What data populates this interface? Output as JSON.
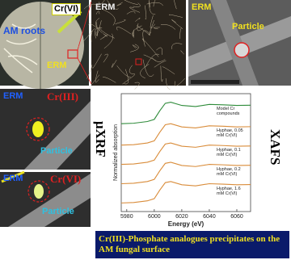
{
  "panels": {
    "roots": {
      "label_am": "AM roots",
      "label_cr": "Cr(VI)",
      "label_erm": "ERM"
    },
    "erm": {
      "label": "ERM"
    },
    "sem": {
      "label_erm": "ERM",
      "label_particle": "Particle"
    },
    "uxrf_cr3": {
      "label_erm": "ERM",
      "label_cr": "Cr(III)",
      "label_particle": "Particle"
    },
    "uxrf_cr6": {
      "label_erm": "ERM",
      "label_cr": "Cr(VI)",
      "label_particle": "Particle"
    }
  },
  "side_labels": {
    "left": "μXRF",
    "right": "XAFS"
  },
  "chart_data": {
    "type": "line",
    "x_label": "Energy (eV)",
    "y_label": "Normalized absorption",
    "x": [
      5976,
      5985,
      5995,
      6000,
      6004,
      6008,
      6012,
      6020,
      6030,
      6040,
      6050,
      6060,
      6070
    ],
    "xlim": [
      5976,
      6070
    ],
    "xticks": [
      5980,
      6000,
      6020,
      6040,
      6060
    ],
    "ylim": [
      0.5,
      6
    ],
    "series": [
      {
        "name": "Model Cr compounds",
        "color": "#2e8b3a",
        "values": [
          4.6,
          4.62,
          4.7,
          4.8,
          5.2,
          5.55,
          5.6,
          5.45,
          5.4,
          5.5,
          5.48,
          5.45,
          5.46
        ]
      },
      {
        "name": "Hyphae, 0.05 mM Cr(VI)",
        "color": "#d98c3a",
        "values": [
          3.6,
          3.62,
          3.7,
          3.8,
          4.2,
          4.55,
          4.6,
          4.45,
          4.4,
          4.5,
          4.48,
          4.45,
          4.46
        ]
      },
      {
        "name": "Hyphae, 0.1 mM Cr(VI)",
        "color": "#d98c3a",
        "values": [
          2.7,
          2.72,
          2.8,
          2.9,
          3.3,
          3.65,
          3.7,
          3.55,
          3.5,
          3.6,
          3.58,
          3.55,
          3.56
        ]
      },
      {
        "name": "Hyphae, 0.2 mM Cr(VI)",
        "color": "#d98c3a",
        "values": [
          1.8,
          1.82,
          1.9,
          2.0,
          2.4,
          2.75,
          2.8,
          2.65,
          2.6,
          2.7,
          2.68,
          2.65,
          2.66
        ]
      },
      {
        "name": "Hyphae, 1.6 mM Cr(VI)",
        "color": "#d98c3a",
        "values": [
          0.9,
          0.92,
          1.0,
          1.1,
          1.5,
          1.85,
          1.9,
          1.75,
          1.7,
          1.8,
          1.78,
          1.75,
          1.76
        ]
      }
    ]
  },
  "caption": "Cr(III)-Phosphate analogues precipitates on the AM fungal surface"
}
